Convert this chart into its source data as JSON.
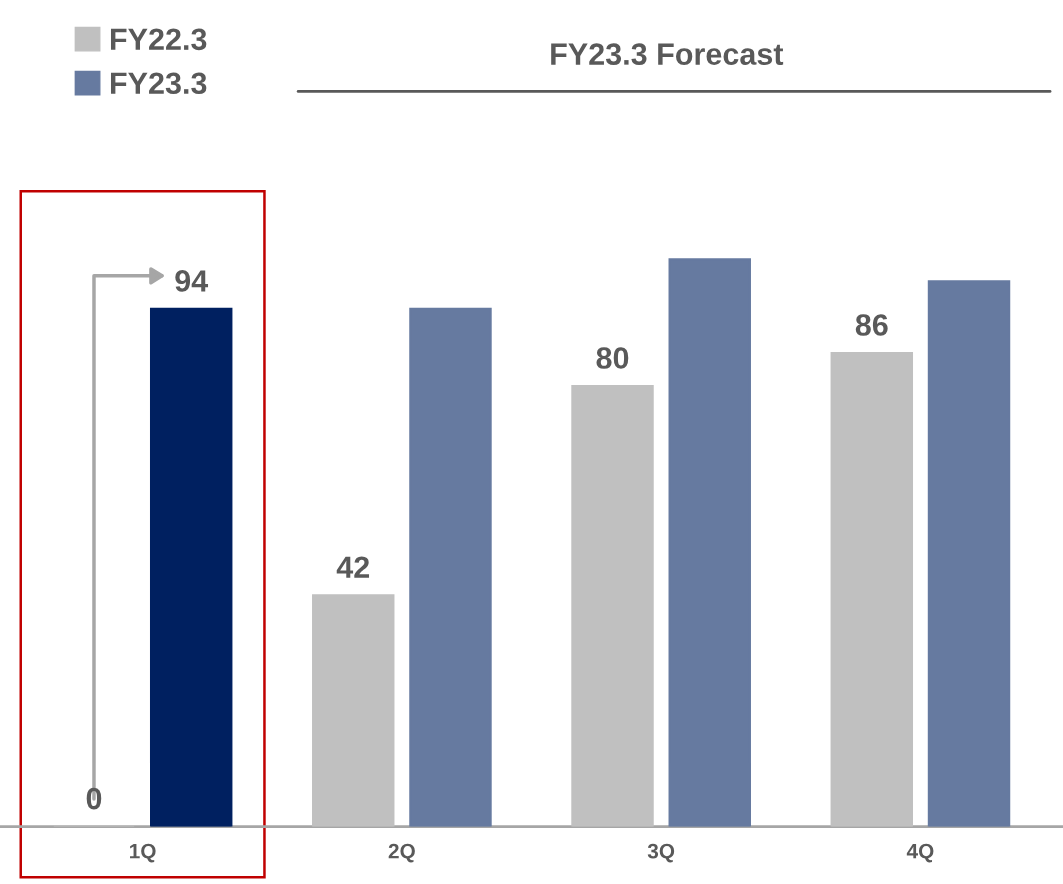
{
  "chart_data": {
    "type": "bar",
    "categories": [
      "1Q",
      "2Q",
      "3Q",
      "4Q"
    ],
    "series": [
      {
        "name": "FY22.3",
        "color": "#c0c0c0",
        "values": [
          0,
          42,
          80,
          86
        ],
        "value_labels": [
          "0",
          "42",
          "80",
          "86"
        ]
      },
      {
        "name": "FY23.3",
        "color": "#667aa0",
        "colors": [
          "#002060",
          "#667aa0",
          "#667aa0",
          "#667aa0"
        ],
        "values": [
          94,
          94,
          103,
          99
        ],
        "value_labels": [
          "94",
          null,
          null,
          null
        ]
      }
    ],
    "annotations": [
      "FY23.3 Forecast"
    ],
    "legend": "top left",
    "grid": false
  }
}
